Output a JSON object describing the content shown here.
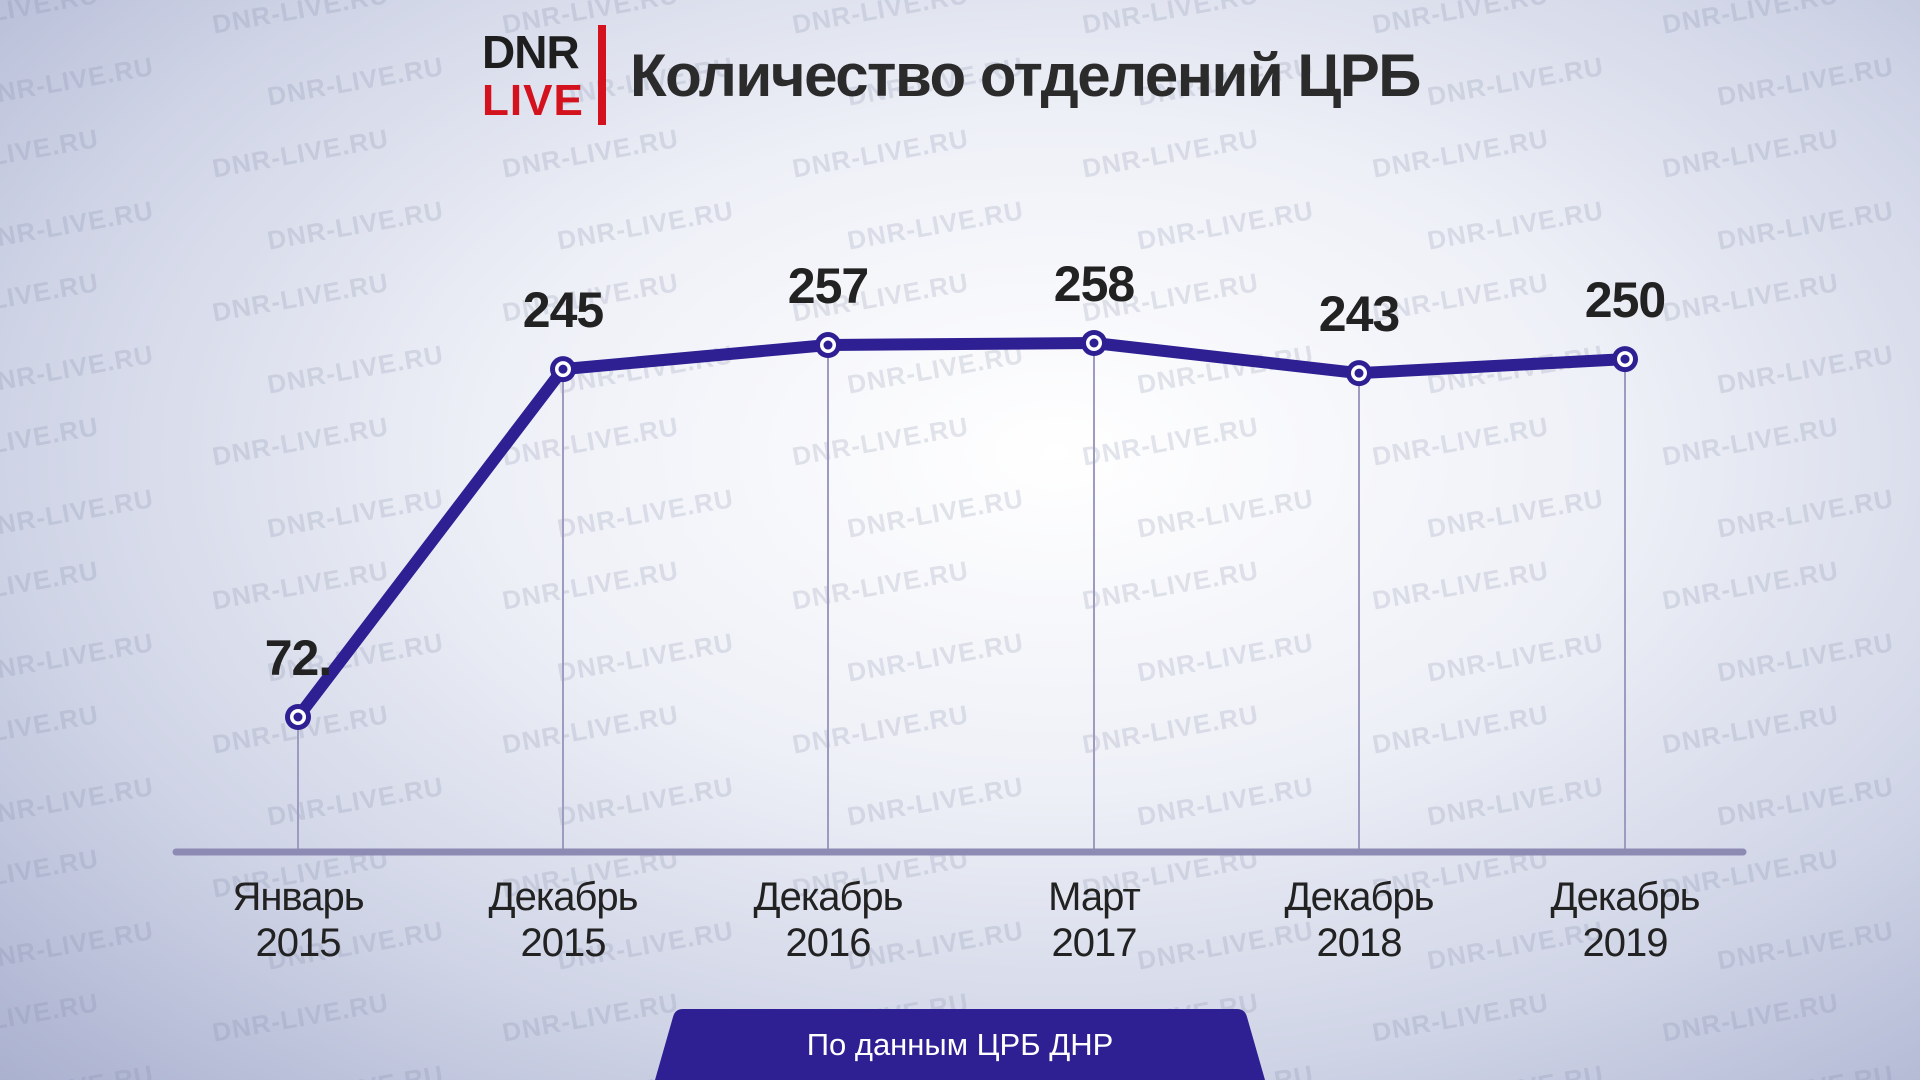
{
  "header": {
    "logo_top": "DNR",
    "logo_bottom": "LIVE",
    "title": "Количество отделений ЦРБ"
  },
  "watermark_text": "DNR-LIVE.RU",
  "chart_data": {
    "type": "line",
    "title": "Количество отделений ЦРБ",
    "categories": [
      [
        "Январь",
        "2015"
      ],
      [
        "Декабрь",
        "2015"
      ],
      [
        "Декабрь",
        "2016"
      ],
      [
        "Март",
        "2017"
      ],
      [
        "Декабрь",
        "2018"
      ],
      [
        "Декабрь",
        "2019"
      ]
    ],
    "values": [
      72,
      245,
      257,
      258,
      243,
      250
    ],
    "value_labels": [
      "72.",
      "245",
      "257",
      "258",
      "243",
      "250"
    ],
    "xlabel": "",
    "ylabel": "",
    "ylim": [
      0,
      300
    ],
    "grid": false,
    "legend": "none"
  },
  "colors": {
    "line": "#2e1f93",
    "marker_fill": "#ffffff",
    "baseline": "#8d8ab4",
    "drop_line": "#9d9cc0",
    "value_text": "#222222",
    "tick_text": "#222222",
    "banner": "#2e1f93",
    "logo_red": "#d4121e"
  },
  "source": {
    "label": "По данным ЦРБ ДНР"
  }
}
